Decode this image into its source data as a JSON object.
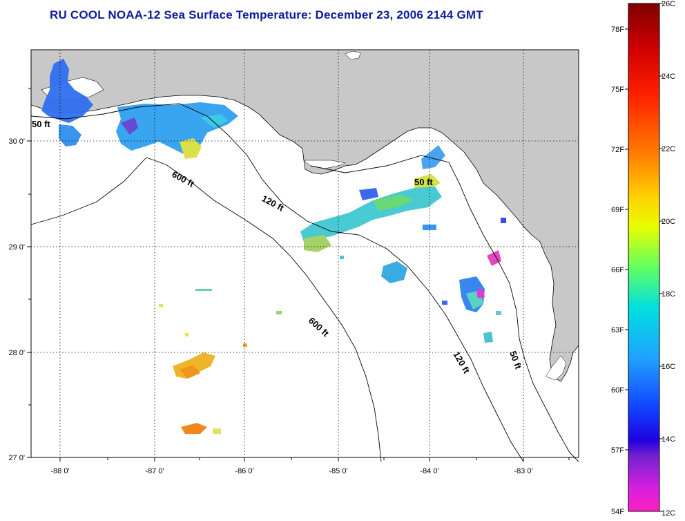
{
  "title": "RU COOL  NOAA-12  Sea Surface Temperature:  December 23, 2006 2144 GMT",
  "map": {
    "lon_ticks": [
      "-88 0'",
      "-87 0'",
      "-86 0'",
      "-85 0'",
      "-84 0'",
      "-83 0'"
    ],
    "lat_ticks": [
      "30 0'",
      "29 0'",
      "28 0'",
      "27 0'"
    ],
    "contour_labels": [
      "50 ft",
      "600 ft",
      "120 ft",
      "50 ft",
      "600 ft",
      "120 ft",
      "50 ft"
    ],
    "colors": {
      "land": "#c8c8c8",
      "ocean": "#ffffff",
      "frame": "#000000",
      "title": "#0b1a9c"
    }
  },
  "colorbar": {
    "fahrenheit_labels": [
      "78F",
      "75F",
      "72F",
      "69F",
      "66F",
      "63F",
      "60F",
      "57F",
      "54F"
    ],
    "celsius_labels": [
      "26C",
      "24C",
      "22C",
      "20C",
      "18C",
      "16C",
      "14C",
      "12C"
    ],
    "range_c": [
      12,
      26
    ]
  }
}
